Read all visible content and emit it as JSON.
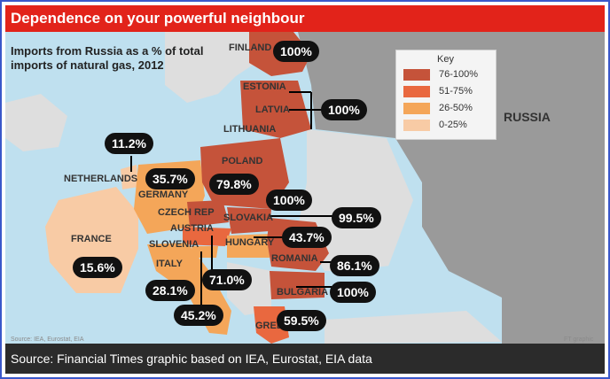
{
  "title": "Dependence on your powerful neighbour",
  "subtitle": "Imports from Russia as a % of total imports of natural gas, 2012",
  "source": "Source: Financial Times graphic based on IEA, Eurostat, EIA data",
  "credits": {
    "left": "Source: IEA, Eurostat, EIA",
    "right": "FT graphic"
  },
  "key": {
    "title": "Key",
    "ranges": [
      {
        "label": "76-100%",
        "color": "#c5533a"
      },
      {
        "label": "51-75%",
        "color": "#e9683f"
      },
      {
        "label": "26-50%",
        "color": "#f4a659"
      },
      {
        "label": "0-25%",
        "color": "#f8cba5"
      }
    ]
  },
  "colors": {
    "sea": "#bfe0ef",
    "land_other": "#dedede",
    "russia": "#9a9a9a",
    "title_bar": "#e2231a"
  },
  "countries": [
    {
      "name": "FINLAND",
      "value": "100%"
    },
    {
      "name": "ESTONIA",
      "value": "100%"
    },
    {
      "name": "LATVIA",
      "value": "100%"
    },
    {
      "name": "LITHUANIA",
      "value": "100%"
    },
    {
      "name": "NETHERLANDS",
      "value": "11.2%"
    },
    {
      "name": "GERMANY",
      "value": "35.7%"
    },
    {
      "name": "POLAND",
      "value": "79.8%"
    },
    {
      "name": "CZECH REP",
      "value": "100%"
    },
    {
      "name": "SLOVAKIA",
      "value": "99.5%"
    },
    {
      "name": "AUSTRIA",
      "value": "71.0%"
    },
    {
      "name": "HUNGARY",
      "value": "43.7%"
    },
    {
      "name": "SLOVENIA",
      "value": "45.2%"
    },
    {
      "name": "FRANCE",
      "value": "15.6%"
    },
    {
      "name": "ITALY",
      "value": "28.1%"
    },
    {
      "name": "ROMANIA",
      "value": "86.1%"
    },
    {
      "name": "BULGARIA",
      "value": "100%"
    },
    {
      "name": "GREECE",
      "value": "59.5%"
    }
  ],
  "russia_label": "RUSSIA"
}
